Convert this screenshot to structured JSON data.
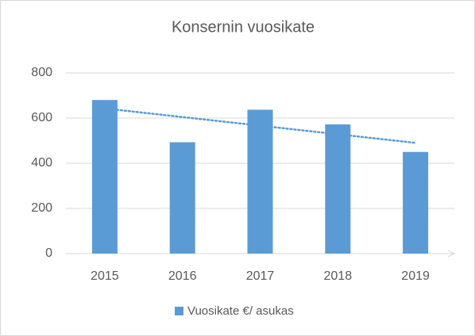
{
  "chart_data": {
    "type": "bar",
    "title": "Konsernin vuosikate",
    "categories": [
      "2015",
      "2016",
      "2017",
      "2018",
      "2019"
    ],
    "series": [
      {
        "name": "Vuosikate €/ asukas",
        "color": "#5b9bd5",
        "values": [
          680,
          493,
          637,
          572,
          450
        ]
      }
    ],
    "ylim": [
      0,
      800
    ],
    "yticks": [
      0,
      200,
      400,
      600,
      800
    ],
    "grid": true,
    "trendline": "linear",
    "legend": "bottom"
  }
}
